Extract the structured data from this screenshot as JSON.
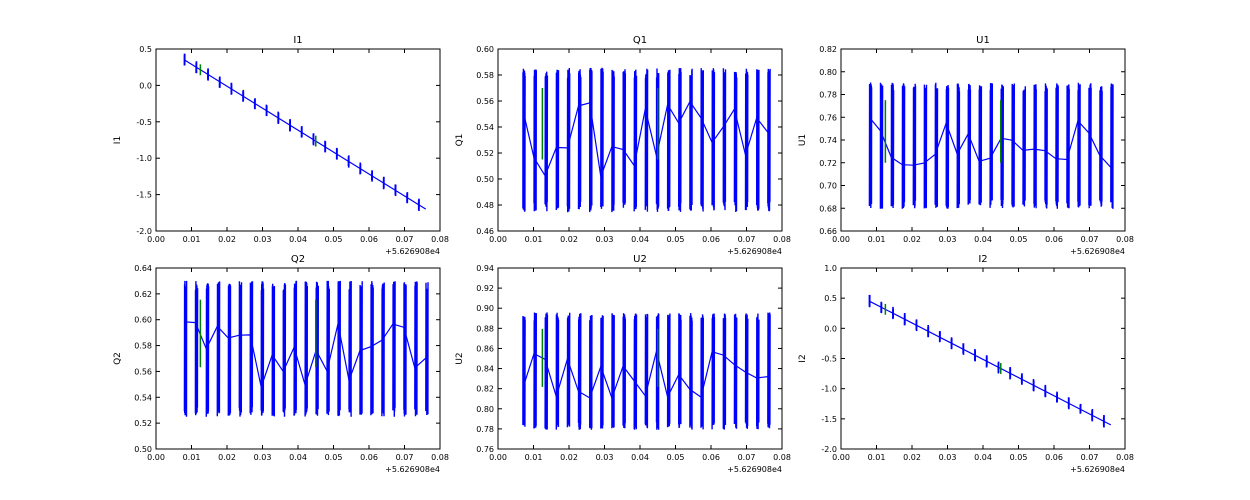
{
  "figure": {
    "background": "#ffffff",
    "colors": {
      "primary": "#0000ff",
      "secondary": "#008000",
      "axes": "#000000"
    }
  },
  "chart_data": [
    {
      "type": "line",
      "title": "I1",
      "ylabel": "I1",
      "xlabel": "",
      "xlim": [
        0.0,
        0.08
      ],
      "ylim": [
        -2.0,
        0.5
      ],
      "xticks": [
        "0.00",
        "0.01",
        "0.02",
        "0.03",
        "0.04",
        "0.05",
        "0.06",
        "0.07",
        "0.08"
      ],
      "yticks": [
        "0.5",
        "0.0",
        "-0.5",
        "-1.0",
        "-1.5",
        "-2.0"
      ],
      "x_offset": "+5.626908e4",
      "series": [
        {
          "kind": "trend",
          "start": [
            0.008,
            0.35
          ],
          "end": [
            0.076,
            -1.7
          ],
          "cycle_values": [
            0.005,
            0.015
          ]
        }
      ]
    },
    {
      "type": "line",
      "title": "Q1",
      "ylabel": "Q1",
      "xlabel": "",
      "xlim": [
        0.0,
        0.08
      ],
      "ylim": [
        0.46,
        0.6
      ],
      "xticks": [
        "0.00",
        "0.01",
        "0.02",
        "0.03",
        "0.04",
        "0.05",
        "0.06",
        "0.07",
        "0.08"
      ],
      "yticks": [
        "0.60",
        "0.58",
        "0.56",
        "0.54",
        "0.52",
        "0.50",
        "0.48",
        "0.46"
      ],
      "x_offset": "+5.626908e4",
      "series": [
        {
          "kind": "oscillating",
          "low": 0.48,
          "high": 0.58,
          "mid": [
            0.5,
            0.56
          ],
          "start_x": 0.007,
          "end_x": 0.076
        }
      ]
    },
    {
      "type": "line",
      "title": "U1",
      "ylabel": "U1",
      "xlabel": "",
      "xlim": [
        0.0,
        0.08
      ],
      "ylim": [
        0.66,
        0.82
      ],
      "xticks": [
        "0.00",
        "0.01",
        "0.02",
        "0.03",
        "0.04",
        "0.05",
        "0.06",
        "0.07",
        "0.08"
      ],
      "yticks": [
        "0.82",
        "0.80",
        "0.78",
        "0.76",
        "0.74",
        "0.72",
        "0.70",
        "0.68",
        "0.66"
      ],
      "x_offset": "+5.626908e4",
      "series": [
        {
          "kind": "oscillating",
          "low": 0.685,
          "high": 0.785,
          "mid": [
            0.71,
            0.76
          ],
          "start_x": 0.008,
          "end_x": 0.076
        }
      ]
    },
    {
      "type": "line",
      "title": "Q2",
      "ylabel": "Q2",
      "xlabel": "",
      "xlim": [
        0.0,
        0.08
      ],
      "ylim": [
        0.5,
        0.64
      ],
      "xticks": [
        "0.00",
        "0.01",
        "0.02",
        "0.03",
        "0.04",
        "0.05",
        "0.06",
        "0.07",
        "0.08"
      ],
      "yticks": [
        "0.64",
        "0.62",
        "0.60",
        "0.58",
        "0.56",
        "0.54",
        "0.52",
        "0.50"
      ],
      "x_offset": "+5.626908e4",
      "series": [
        {
          "kind": "oscillating",
          "low": 0.53,
          "high": 0.625,
          "mid": [
            0.545,
            0.6
          ],
          "start_x": 0.008,
          "end_x": 0.076
        }
      ]
    },
    {
      "type": "line",
      "title": "U2",
      "ylabel": "U2",
      "xlabel": "",
      "xlim": [
        0.0,
        0.08
      ],
      "ylim": [
        0.76,
        0.94
      ],
      "xticks": [
        "0.00",
        "0.01",
        "0.02",
        "0.03",
        "0.04",
        "0.05",
        "0.06",
        "0.07",
        "0.08"
      ],
      "yticks": [
        "0.94",
        "0.92",
        "0.90",
        "0.88",
        "0.86",
        "0.84",
        "0.82",
        "0.80",
        "0.78",
        "0.76"
      ],
      "x_offset": "+5.626908e4",
      "series": [
        {
          "kind": "oscillating",
          "low": 0.785,
          "high": 0.89,
          "mid": [
            0.81,
            0.86
          ],
          "start_x": 0.007,
          "end_x": 0.076
        }
      ]
    },
    {
      "type": "line",
      "title": "I2",
      "ylabel": "I2",
      "xlabel": "",
      "xlim": [
        0.0,
        0.08
      ],
      "ylim": [
        -2.0,
        1.0
      ],
      "xticks": [
        "0.00",
        "0.01",
        "0.02",
        "0.03",
        "0.04",
        "0.05",
        "0.06",
        "0.07",
        "0.08"
      ],
      "yticks": [
        "1.0",
        "0.5",
        "0.0",
        "-0.5",
        "-1.0",
        "-1.5",
        "-2.0"
      ],
      "x_offset": "+5.626908e4",
      "series": [
        {
          "kind": "trend",
          "start": [
            0.008,
            0.45
          ],
          "end": [
            0.076,
            -1.6
          ],
          "cycle_values": [
            0.005,
            0.015
          ]
        }
      ]
    }
  ]
}
